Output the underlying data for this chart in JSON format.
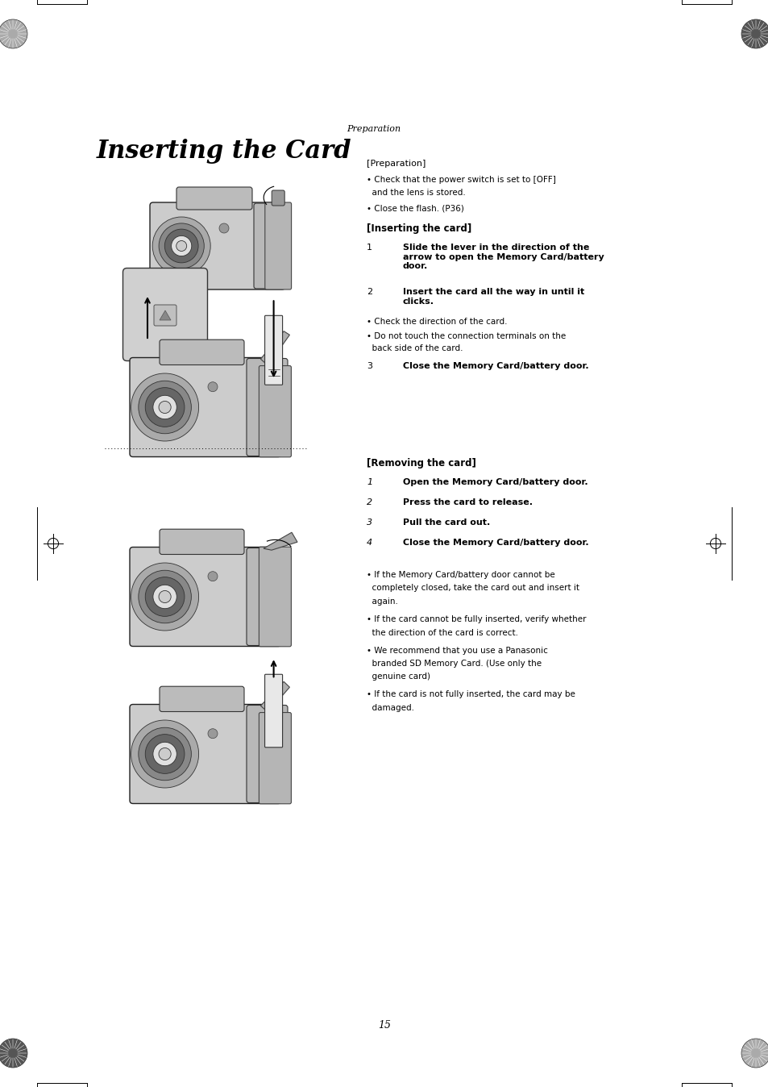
{
  "bg_color": "#ffffff",
  "page_width": 9.54,
  "page_height": 13.48,
  "preparation_label": "Preparation",
  "title": "Inserting the Card",
  "prep_section_header": "[Preparation]",
  "prep_bullet1": "• Check that the power switch is set to [OFF]",
  "prep_bullet1b": "  and the lens is stored.",
  "prep_bullet2": "• Close the flash. (P36)",
  "insert_header": "[Inserting the card]",
  "step1_num": "1",
  "step1_text": "Slide the lever in the direction of the\narrow to open the Memory Card/battery\ndoor.",
  "step2_num": "2",
  "step2_text": "Insert the card all the way in until it\nclicks.",
  "step2_b1": "• Check the direction of the card.",
  "step2_b2": "• Do not touch the connection terminals on the",
  "step2_b2b": "  back side of the card.",
  "step3_num": "3",
  "step3_text": "Close the Memory Card/battery door.",
  "remove_header": "[Removing the card]",
  "rm1_num": "1",
  "rm1_text": "Open the Memory Card/battery door.",
  "rm2_num": "2",
  "rm2_text": "Press the card to release.",
  "rm3_num": "3",
  "rm3_text": "Pull the card out.",
  "rm4_num": "4",
  "rm4_text": "Close the Memory Card/battery door.",
  "note1": "• If the Memory Card/battery door cannot be",
  "note1b": "  completely closed, take the card out and insert it",
  "note1c": "  again.",
  "note2": "• If the card cannot be fully inserted, verify whether",
  "note2b": "  the direction of the card is correct.",
  "note3": "• We recommend that you use a Panasonic",
  "note3b": "  branded SD Memory Card. (Use only the",
  "note3c": "  genuine card)",
  "note4": "• If the card is not fully inserted, the card may be",
  "note4b": "  damaged.",
  "page_number": "15"
}
